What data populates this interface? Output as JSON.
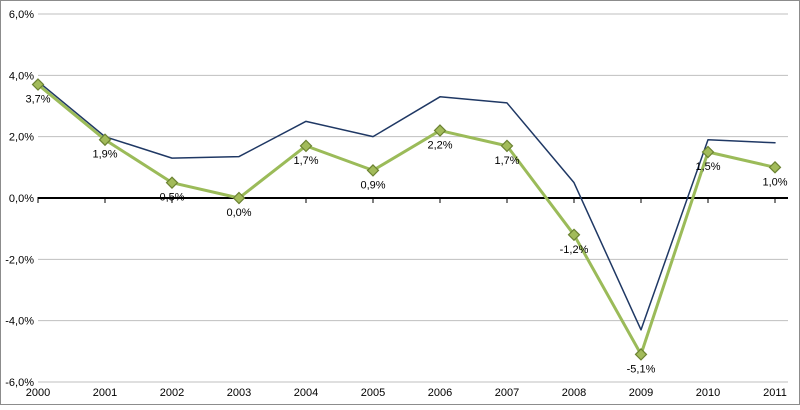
{
  "chart": {
    "background": "#FFFFFF",
    "border_color": "#8C8C8C",
    "grid_color": "#BFBFBF",
    "zero_axis_color": "#000000",
    "text_color": "#000000"
  },
  "chart_data": {
    "type": "line",
    "title": "",
    "xlabel": "",
    "ylabel": "",
    "x_labels": [
      "2000",
      "2001",
      "2002",
      "2003",
      "2004",
      "2005",
      "2006",
      "2007",
      "2008",
      "2009",
      "2010",
      "2011"
    ],
    "ylim": [
      -6,
      6
    ],
    "yticks": [
      6,
      4,
      2,
      0,
      -2,
      -4,
      -6
    ],
    "ytick_labels": [
      "6,0%",
      "4,0%",
      "2,0%",
      "0,0%",
      "-2,0%",
      "-4,0%",
      "-6,0%"
    ],
    "grid": true,
    "legend_position": "none",
    "series": [
      {
        "name": "upper-unmarked-line",
        "color": "#1F3864",
        "line_width": 1.5,
        "markers": false,
        "values": [
          3.8,
          2.0,
          1.3,
          1.35,
          2.5,
          2.0,
          3.3,
          3.1,
          0.5,
          -4.3,
          1.9,
          1.8
        ]
      },
      {
        "name": "labeled-marker-line",
        "color": "#9BBB59",
        "marker_fill": "#A2BB5A",
        "marker_stroke": "#6B8232",
        "line_width": 3,
        "markers": true,
        "values": [
          3.7,
          1.9,
          0.5,
          0.0,
          1.7,
          0.9,
          2.2,
          1.7,
          -1.2,
          -5.1,
          1.5,
          1.0
        ],
        "data_labels": [
          "3,7%",
          "1,9%",
          "0,5%",
          "0,0%",
          "1,7%",
          "0,9%",
          "2,2%",
          "1,7%",
          "-1,2%",
          "-5,1%",
          "1,5%",
          "1,0%"
        ]
      }
    ]
  }
}
